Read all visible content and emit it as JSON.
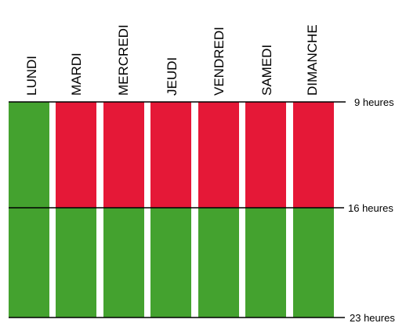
{
  "days": [
    "LUNDI",
    "MARDI",
    "MERCREDI",
    "JEUDI",
    "VENDREDI",
    "SAMEDI",
    "DIMANCHE"
  ],
  "times": [
    "9 heures",
    "16 heures",
    "23 heures"
  ],
  "colors": {
    "open": "#44a22f",
    "closed": "#e51837",
    "line": "#000000"
  },
  "schedule": [
    {
      "day": "LUNDI",
      "slots": [
        "open",
        "open"
      ]
    },
    {
      "day": "MARDI",
      "slots": [
        "closed",
        "open"
      ]
    },
    {
      "day": "MERCREDI",
      "slots": [
        "closed",
        "open"
      ]
    },
    {
      "day": "JEUDI",
      "slots": [
        "closed",
        "open"
      ]
    },
    {
      "day": "VENDREDI",
      "slots": [
        "closed",
        "open"
      ]
    },
    {
      "day": "SAMEDI",
      "slots": [
        "closed",
        "open"
      ]
    },
    {
      "day": "DIMANCHE",
      "slots": [
        "closed",
        "open"
      ]
    }
  ]
}
